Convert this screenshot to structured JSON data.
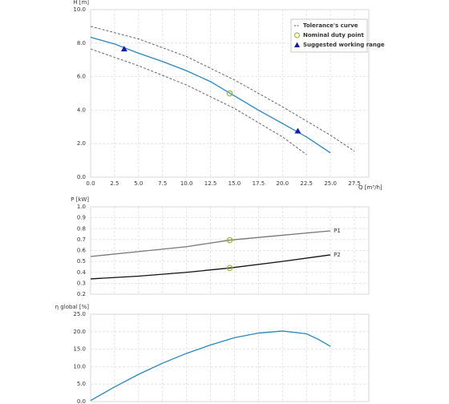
{
  "chart_data": [
    {
      "type": "line",
      "ylabel": "H [m]",
      "xlabel": "Q [m³/h]",
      "xlim": [
        0,
        29
      ],
      "ylim": [
        0,
        10
      ],
      "grid": true,
      "legend": "top-right",
      "xticks": [
        {
          "value": 0,
          "label": "0.0"
        },
        2.5,
        {
          "value": 5,
          "label": "5.0"
        },
        7.5,
        {
          "value": 10,
          "label": "10.0"
        },
        12.5,
        {
          "value": 15,
          "label": "15.0"
        },
        17.5,
        {
          "value": 20,
          "label": "20.0"
        },
        22.5,
        {
          "value": 25,
          "label": "25.0"
        },
        27.5
      ],
      "yticks": [
        {
          "value": 0,
          "label": "0.0"
        },
        {
          "value": 2,
          "label": "2.0"
        },
        {
          "value": 4,
          "label": "4.0"
        },
        {
          "value": 6,
          "label": "6.0"
        },
        {
          "value": 8,
          "label": "8.0"
        },
        {
          "value": 10,
          "label": "10.0"
        }
      ],
      "series": [
        {
          "marker": "line",
          "color": "#2a86b8",
          "x": [
            0,
            2.5,
            5,
            7.5,
            10,
            12.5,
            15,
            17.5,
            20,
            22.5,
            25
          ],
          "values": [
            8.35,
            7.95,
            7.4,
            6.9,
            6.35,
            5.7,
            4.85,
            4.0,
            3.2,
            2.4,
            1.45
          ]
        },
        {
          "name": "Tolerance's curve",
          "marker": "dashed",
          "color": "#555555",
          "x": [
            0,
            5,
            10,
            15,
            20,
            25,
            27.5
          ],
          "values": [
            9.0,
            8.25,
            7.2,
            5.8,
            4.2,
            2.5,
            1.55
          ]
        },
        {
          "marker": "dashed",
          "color": "#555555",
          "x": [
            0,
            5,
            10,
            15,
            20,
            22.5
          ],
          "values": [
            7.65,
            6.65,
            5.5,
            4.1,
            2.4,
            1.35
          ]
        },
        {
          "name": "Nominal duty point",
          "marker": "circle",
          "color": "#9bbb2a",
          "x": [
            14.5
          ],
          "values": [
            5.0
          ]
        },
        {
          "name": "Suggested working range",
          "marker": "triangle",
          "color": "#1a1aa6",
          "x": [
            3.5,
            21.6
          ],
          "values": [
            7.65,
            2.75
          ]
        }
      ]
    },
    {
      "type": "line",
      "ylabel": "P [kW]",
      "xlim": [
        0,
        29
      ],
      "ylim": [
        0.2,
        1.0
      ],
      "grid": true,
      "yticks": [
        0.2,
        0.3,
        0.4,
        0.5,
        0.6,
        0.7,
        0.8,
        0.9,
        {
          "value": 1,
          "label": "1.0"
        }
      ],
      "series": [
        {
          "name": "P1",
          "marker": "line",
          "label_at_end": true,
          "color": "#777777",
          "x": [
            0,
            5,
            10,
            14.5,
            20,
            25
          ],
          "values": [
            0.545,
            0.59,
            0.635,
            0.695,
            0.74,
            0.78
          ]
        },
        {
          "name": "P2",
          "marker": "line",
          "label_at_end": true,
          "color": "#111111",
          "x": [
            0,
            5,
            10,
            14.5,
            20,
            25
          ],
          "values": [
            0.34,
            0.365,
            0.4,
            0.44,
            0.5,
            0.56
          ]
        },
        {
          "marker": "circle",
          "color": "#9bbb2a",
          "x": [
            14.5,
            14.5
          ],
          "values": [
            0.695,
            0.44
          ]
        }
      ]
    },
    {
      "type": "line",
      "ylabel": "η global [%]",
      "xlim": [
        0,
        29
      ],
      "ylim": [
        0,
        25
      ],
      "grid": true,
      "yticks": [
        {
          "value": 0,
          "label": "0.0"
        },
        {
          "value": 5,
          "label": "5.0"
        },
        {
          "value": 10,
          "label": "10.0"
        },
        {
          "value": 15,
          "label": "15.0"
        },
        {
          "value": 20,
          "label": "20.0"
        },
        {
          "value": 25,
          "label": "25.0"
        }
      ],
      "series": [
        {
          "marker": "line",
          "color": "#2a86b8",
          "x": [
            0,
            2.5,
            5,
            7.5,
            10,
            12.5,
            15,
            17.5,
            20,
            22.5,
            23.75,
            25
          ],
          "values": [
            0.3,
            4.2,
            7.8,
            11.0,
            13.8,
            16.2,
            18.3,
            19.6,
            20.2,
            19.4,
            17.8,
            15.8
          ]
        }
      ]
    }
  ]
}
